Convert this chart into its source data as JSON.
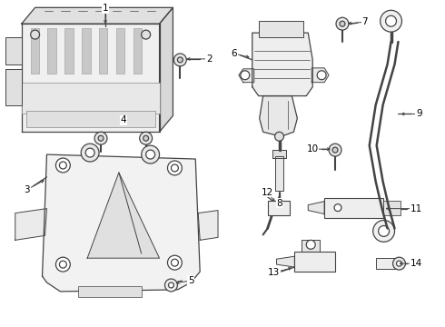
{
  "background_color": "#ffffff",
  "line_color": "#444444",
  "fig_width": 4.9,
  "fig_height": 3.6,
  "dpi": 100,
  "label_fontsize": 7.5,
  "lw": 0.9
}
